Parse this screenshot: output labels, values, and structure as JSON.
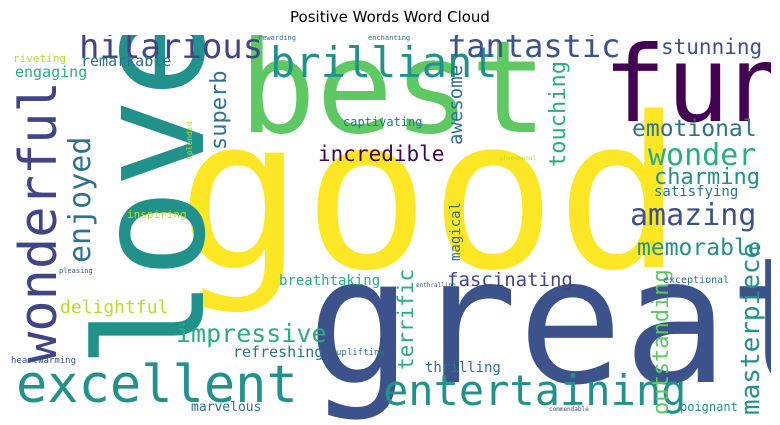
{
  "title": "Positive Words Word Cloud",
  "colors": {
    "yellow": "#fde725",
    "green": "#5ec962",
    "teal": "#21918c",
    "blue": "#3b528b",
    "purple": "#440154",
    "lime": "#b5de2b",
    "navy": "#414487",
    "slate": "#2c728e",
    "sea": "#28ae80"
  },
  "words": [
    {
      "text": "good"
    },
    {
      "text": "great"
    },
    {
      "text": "love"
    },
    {
      "text": "best"
    },
    {
      "text": "fun"
    },
    {
      "text": "excellent"
    },
    {
      "text": "wonderful"
    },
    {
      "text": "brilliant"
    },
    {
      "text": "entertaining"
    },
    {
      "text": "hilarious"
    },
    {
      "text": "fantastic"
    },
    {
      "text": "amazing"
    },
    {
      "text": "wonder"
    },
    {
      "text": "emotional"
    },
    {
      "text": "enjoyed"
    },
    {
      "text": "masterpiece"
    },
    {
      "text": "memorable"
    },
    {
      "text": "impressive"
    },
    {
      "text": "charming"
    },
    {
      "text": "incredible"
    },
    {
      "text": "fascinating"
    },
    {
      "text": "outstanding"
    },
    {
      "text": "superb"
    },
    {
      "text": "awesome"
    },
    {
      "text": "touching"
    },
    {
      "text": "terrific"
    },
    {
      "text": "stunning"
    },
    {
      "text": "delightful"
    },
    {
      "text": "refreshing"
    },
    {
      "text": "engaging"
    },
    {
      "text": "remarkable"
    },
    {
      "text": "thrilling"
    },
    {
      "text": "breathtaking"
    },
    {
      "text": "satisfying"
    },
    {
      "text": "magical"
    },
    {
      "text": "marvelous"
    },
    {
      "text": "captivating"
    },
    {
      "text": "poignant"
    },
    {
      "text": "inspiring"
    },
    {
      "text": "riveting"
    },
    {
      "text": "exceptional"
    },
    {
      "text": "uplifting"
    },
    {
      "text": "heartwarming"
    },
    {
      "text": "splendid"
    },
    {
      "text": "pleasing"
    },
    {
      "text": "rewarding"
    },
    {
      "text": "enchanting"
    },
    {
      "text": "enthralling"
    },
    {
      "text": "phenomenal"
    },
    {
      "text": "commendable"
    }
  ]
}
